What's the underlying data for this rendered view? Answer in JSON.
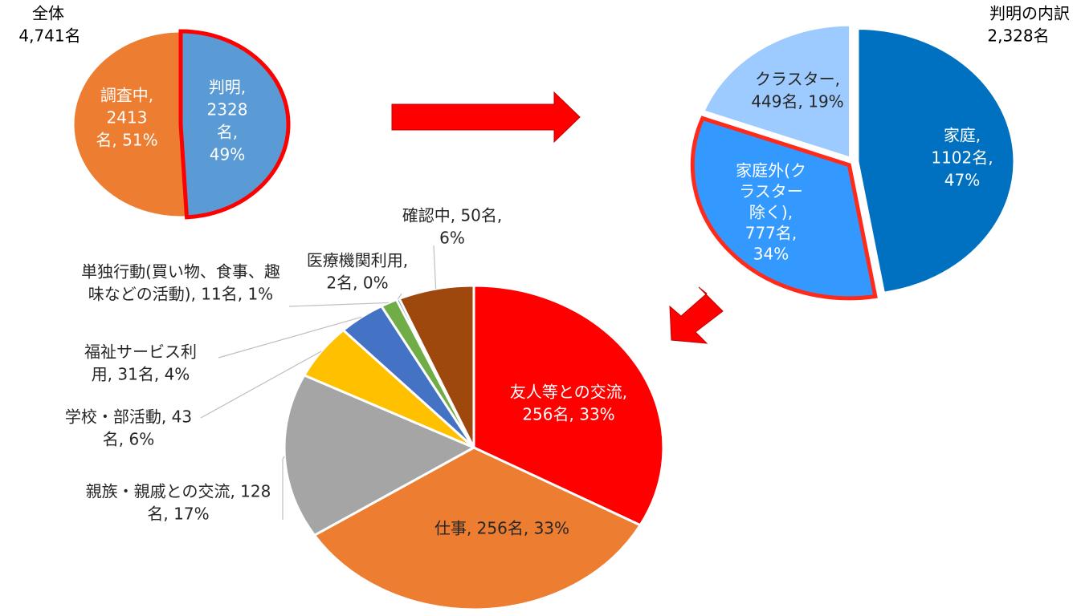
{
  "chart_data": [
    {
      "type": "pie",
      "title": "全体",
      "subtitle": "4,741名",
      "values": [
        2328,
        2413
      ],
      "value_labels": [
        [
          "判明,",
          "2328",
          "名,",
          "49%"
        ],
        [
          "調査中,",
          "2413",
          "名, 51%"
        ]
      ],
      "colors": [
        "#5b9bd5",
        "#ed7d31"
      ],
      "highlight": 0,
      "highlight_color": "#ff0000"
    },
    {
      "type": "pie",
      "title": "判明の内訳",
      "subtitle": "2,328名",
      "values": [
        1102,
        777,
        449
      ],
      "value_labels": [
        [
          "家庭,",
          "1102名,",
          "47%"
        ],
        [
          "家庭外(ク",
          "ラスター",
          "除く),",
          "777名,",
          "34%"
        ],
        [
          "クラスター,",
          "449名, 19%"
        ]
      ],
      "colors": [
        "#0070c0",
        "#3399ff",
        "#9dcbff"
      ],
      "highlight": 1,
      "highlight_color": "#ff2a1a"
    },
    {
      "type": "pie",
      "values": [
        256,
        256,
        128,
        43,
        31,
        11,
        2,
        50
      ],
      "value_labels": [
        [
          "友人等との交流,",
          "256名, 33%"
        ],
        [
          "仕事, 256名, 33%"
        ],
        [
          "親族・親戚との交流, 128",
          "名, 17%"
        ],
        [
          "学校・部活動, 43",
          "名, 6%"
        ],
        [
          "福祉サービス利",
          "用, 31名, 4%"
        ],
        [
          "単独行動(買い物、食事、趣",
          "味などの活動), 11名, 1%"
        ],
        [
          "医療機関利用,",
          "2名, 0%"
        ],
        [
          "確認中, 50名,",
          "6%"
        ]
      ],
      "colors": [
        "#ff0000",
        "#ed7d31",
        "#a5a5a5",
        "#ffc000",
        "#4472c4",
        "#70ad47",
        "#2f5597",
        "#9e480e"
      ]
    }
  ]
}
